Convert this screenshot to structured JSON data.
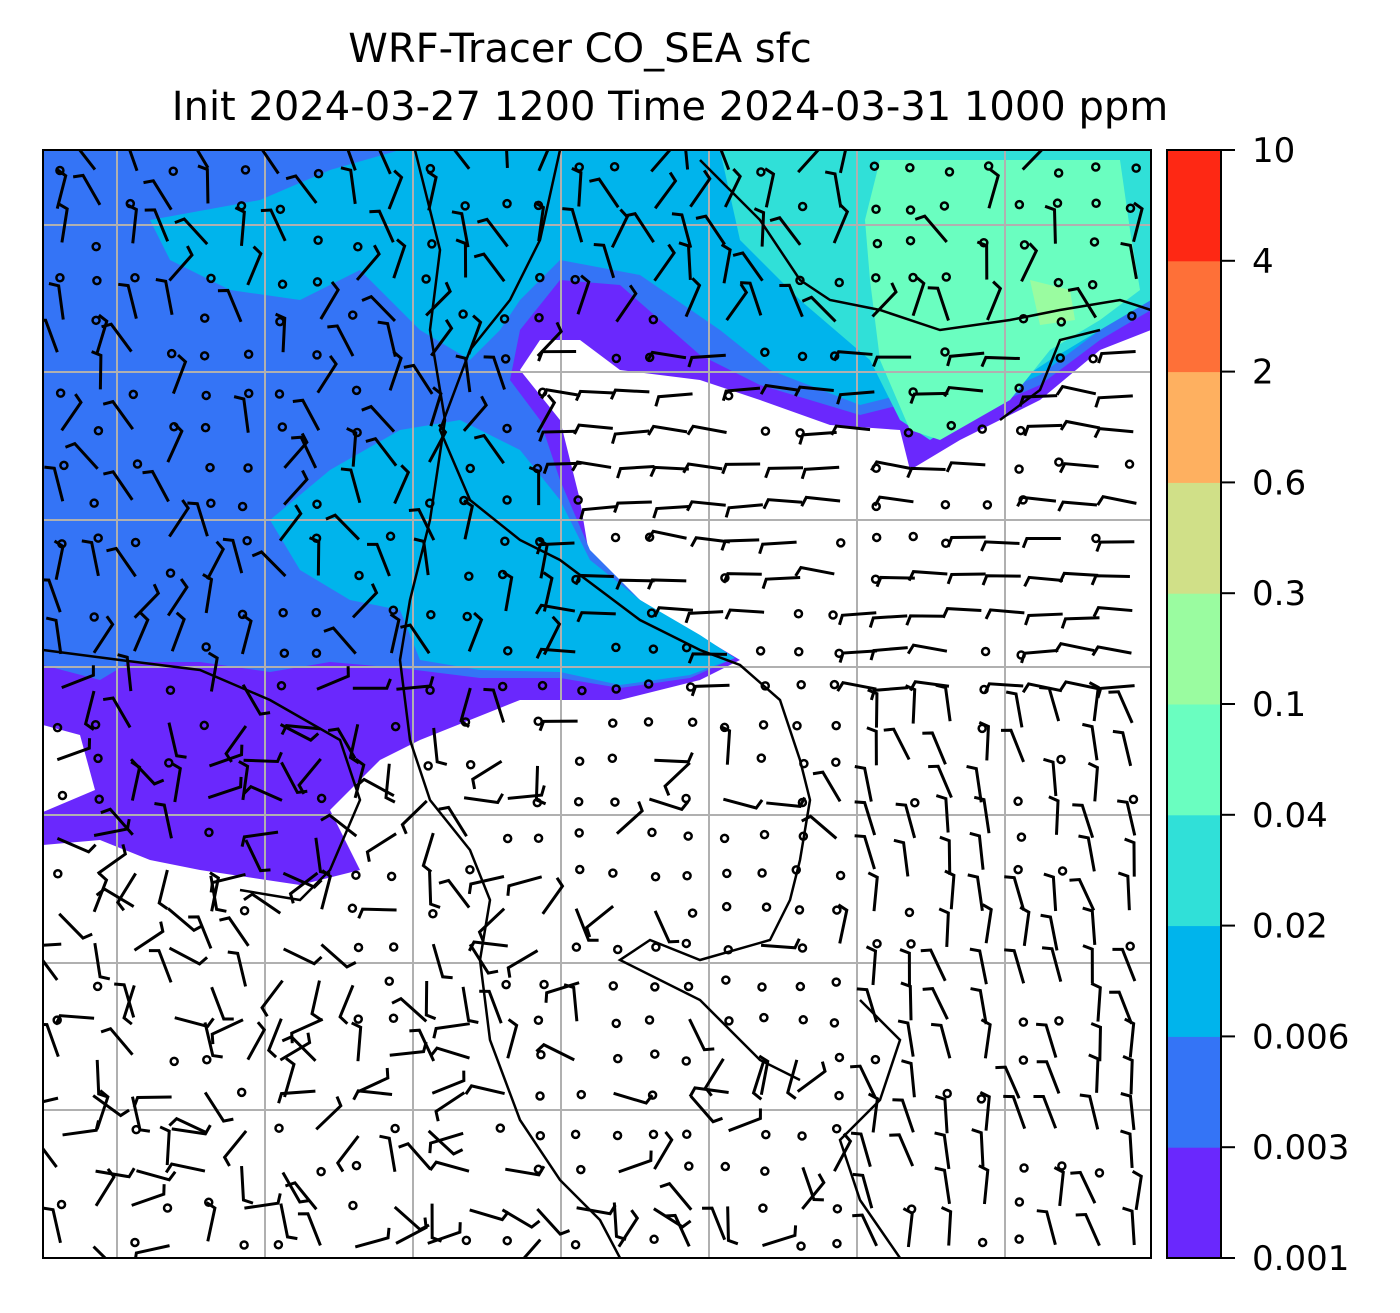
{
  "title": {
    "line1": "WRF-Tracer CO_SEA sfc",
    "line2": "Init 2024-03-27 1200 Time 2024-03-31 1000 ppm"
  },
  "colorbar": {
    "unit": "ppm",
    "ticks": [
      "0.001",
      "0.003",
      "0.006",
      "0.02",
      "0.04",
      "0.1",
      "0.3",
      "0.6",
      "2",
      "4",
      "10"
    ],
    "colors": [
      "#6a28fd",
      "#3474f6",
      "#00b4ec",
      "#30e0d8",
      "#6afec0",
      "#9afca0",
      "#d0e088",
      "#feb060",
      "#fe7038",
      "#fe2814"
    ]
  },
  "map": {
    "background": "#ffffff",
    "gridline_color": "#b0b0b0",
    "fields": [
      "CO_SEA tracer concentration",
      "surface wind barbs"
    ]
  }
}
